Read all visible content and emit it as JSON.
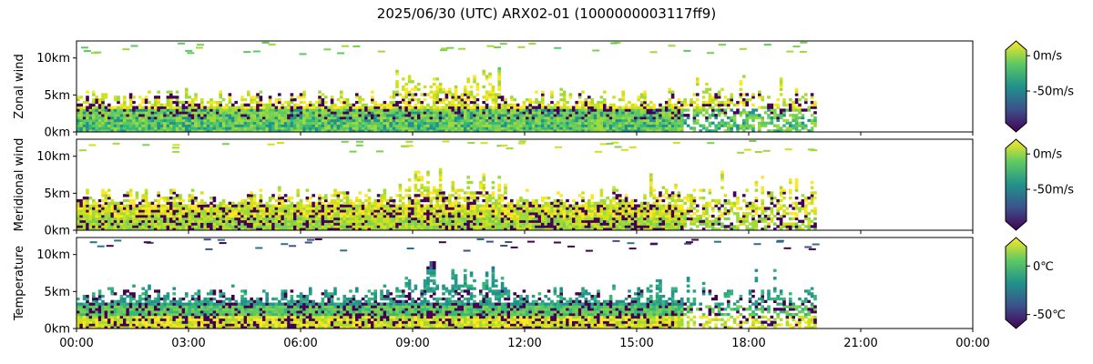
{
  "title": "2025/06/30 (UTC) ARX02-01 (1000000003117ff9)",
  "chart_data": {
    "type": "heatmap",
    "x_axis": {
      "range": [
        "00:00",
        "24:00"
      ],
      "range_hours": [
        0,
        24
      ],
      "ticks": [
        "00:00",
        "03:00",
        "06:00",
        "09:00",
        "12:00",
        "15:00",
        "18:00",
        "21:00",
        "00:00"
      ],
      "tick_hours": [
        0,
        3,
        6,
        9,
        12,
        15,
        18,
        21,
        24
      ]
    },
    "data_extent_hours": [
      0,
      19.9
    ],
    "panels": [
      {
        "id": "zonal",
        "ylabel": "Zonal wind",
        "ylim_km": [
          0,
          12.3
        ],
        "yticks": [
          "0km",
          "5km",
          "10km"
        ],
        "ytick_values": [
          0,
          5,
          10
        ],
        "colorbar": {
          "colormap": "viridis",
          "range": [
            -95,
            8
          ],
          "extend": "both",
          "ticks": [
            "0m/s",
            "-50m/s"
          ],
          "tick_values": [
            0,
            -50
          ]
        },
        "colorbar_colors": [
          "#440154",
          "#3b528b",
          "#21918c",
          "#5ec962",
          "#fde725"
        ],
        "bands": [
          {
            "bottom_km": 0,
            "top_km": 1.5,
            "colors": [
              "#7ad151",
              "#5ec962",
              "#35b779",
              "#21918c",
              "#a0da39"
            ]
          },
          {
            "bottom_km": 1.5,
            "top_km": 3.0,
            "colors": [
              "#7ad151",
              "#5ec962",
              "#440154",
              "#21918c",
              "#a0da39"
            ]
          },
          {
            "bottom_km": 3.0,
            "top_km": 5.0,
            "colors": [
              "#fde725",
              "#d0e11c",
              "#a0da39",
              "#440154"
            ]
          },
          {
            "bottom_km": 5.0,
            "top_km": 8.0,
            "colors": [
              "#d0e11c",
              "#a0da39",
              "#fde725"
            ]
          },
          {
            "bottom_km": 8.0,
            "top_km": 12.0,
            "colors": [
              "#a0da39",
              "#7ad151",
              "#5ec962"
            ]
          }
        ]
      },
      {
        "id": "meridional",
        "ylabel": "Meridional wind",
        "ylim_km": [
          0,
          12.3
        ],
        "yticks": [
          "0km",
          "5km",
          "10km"
        ],
        "ytick_values": [
          0,
          5,
          10
        ],
        "colorbar": {
          "colormap": "viridis",
          "range": [
            -95,
            8
          ],
          "extend": "both",
          "ticks": [
            "0m/s",
            "-50m/s"
          ],
          "tick_values": [
            0,
            -50
          ]
        },
        "colorbar_colors": [
          "#440154",
          "#3b528b",
          "#21918c",
          "#5ec962",
          "#fde725"
        ],
        "bands": [
          {
            "bottom_km": 0,
            "top_km": 1.5,
            "colors": [
              "#a0da39",
              "#d0e11c",
              "#440154",
              "#7ad151"
            ]
          },
          {
            "bottom_km": 1.5,
            "top_km": 3.0,
            "colors": [
              "#d0e11c",
              "#a0da39",
              "#440154",
              "#fde725"
            ]
          },
          {
            "bottom_km": 3.0,
            "top_km": 5.0,
            "colors": [
              "#d0e11c",
              "#fde725",
              "#a0da39",
              "#440154"
            ]
          },
          {
            "bottom_km": 5.0,
            "top_km": 8.0,
            "colors": [
              "#d0e11c",
              "#fde725",
              "#a0da39"
            ]
          },
          {
            "bottom_km": 8.0,
            "top_km": 12.0,
            "colors": [
              "#a0da39",
              "#d0e11c",
              "#7ad151"
            ]
          }
        ]
      },
      {
        "id": "temperature",
        "ylabel": "Temperature",
        "ylim_km": [
          0,
          12.3
        ],
        "yticks": [
          "0km",
          "5km",
          "10km"
        ],
        "ytick_values": [
          0,
          5,
          10
        ],
        "colorbar": {
          "colormap": "viridis",
          "range": [
            -55,
            20
          ],
          "extend": "both",
          "ticks": [
            "0℃",
            "-50℃"
          ],
          "tick_values": [
            0,
            -50
          ]
        },
        "colorbar_colors": [
          "#440154",
          "#3b528b",
          "#21918c",
          "#5ec962",
          "#fde725"
        ],
        "bands": [
          {
            "bottom_km": 0,
            "top_km": 1.5,
            "colors": [
              "#fde725",
              "#d0e11c",
              "#a0da39",
              "#440154"
            ]
          },
          {
            "bottom_km": 1.5,
            "top_km": 3.0,
            "colors": [
              "#7ad151",
              "#5ec962",
              "#440154",
              "#35b779"
            ]
          },
          {
            "bottom_km": 3.0,
            "top_km": 5.0,
            "colors": [
              "#35b779",
              "#2a9d8a",
              "#21918c",
              "#440154"
            ]
          },
          {
            "bottom_km": 5.0,
            "top_km": 8.0,
            "colors": [
              "#21918c",
              "#2a9d8a",
              "#35b779"
            ]
          },
          {
            "bottom_km": 8.0,
            "top_km": 12.0,
            "colors": [
              "#2c728e",
              "#440154",
              "#3b528b"
            ]
          }
        ]
      }
    ]
  }
}
